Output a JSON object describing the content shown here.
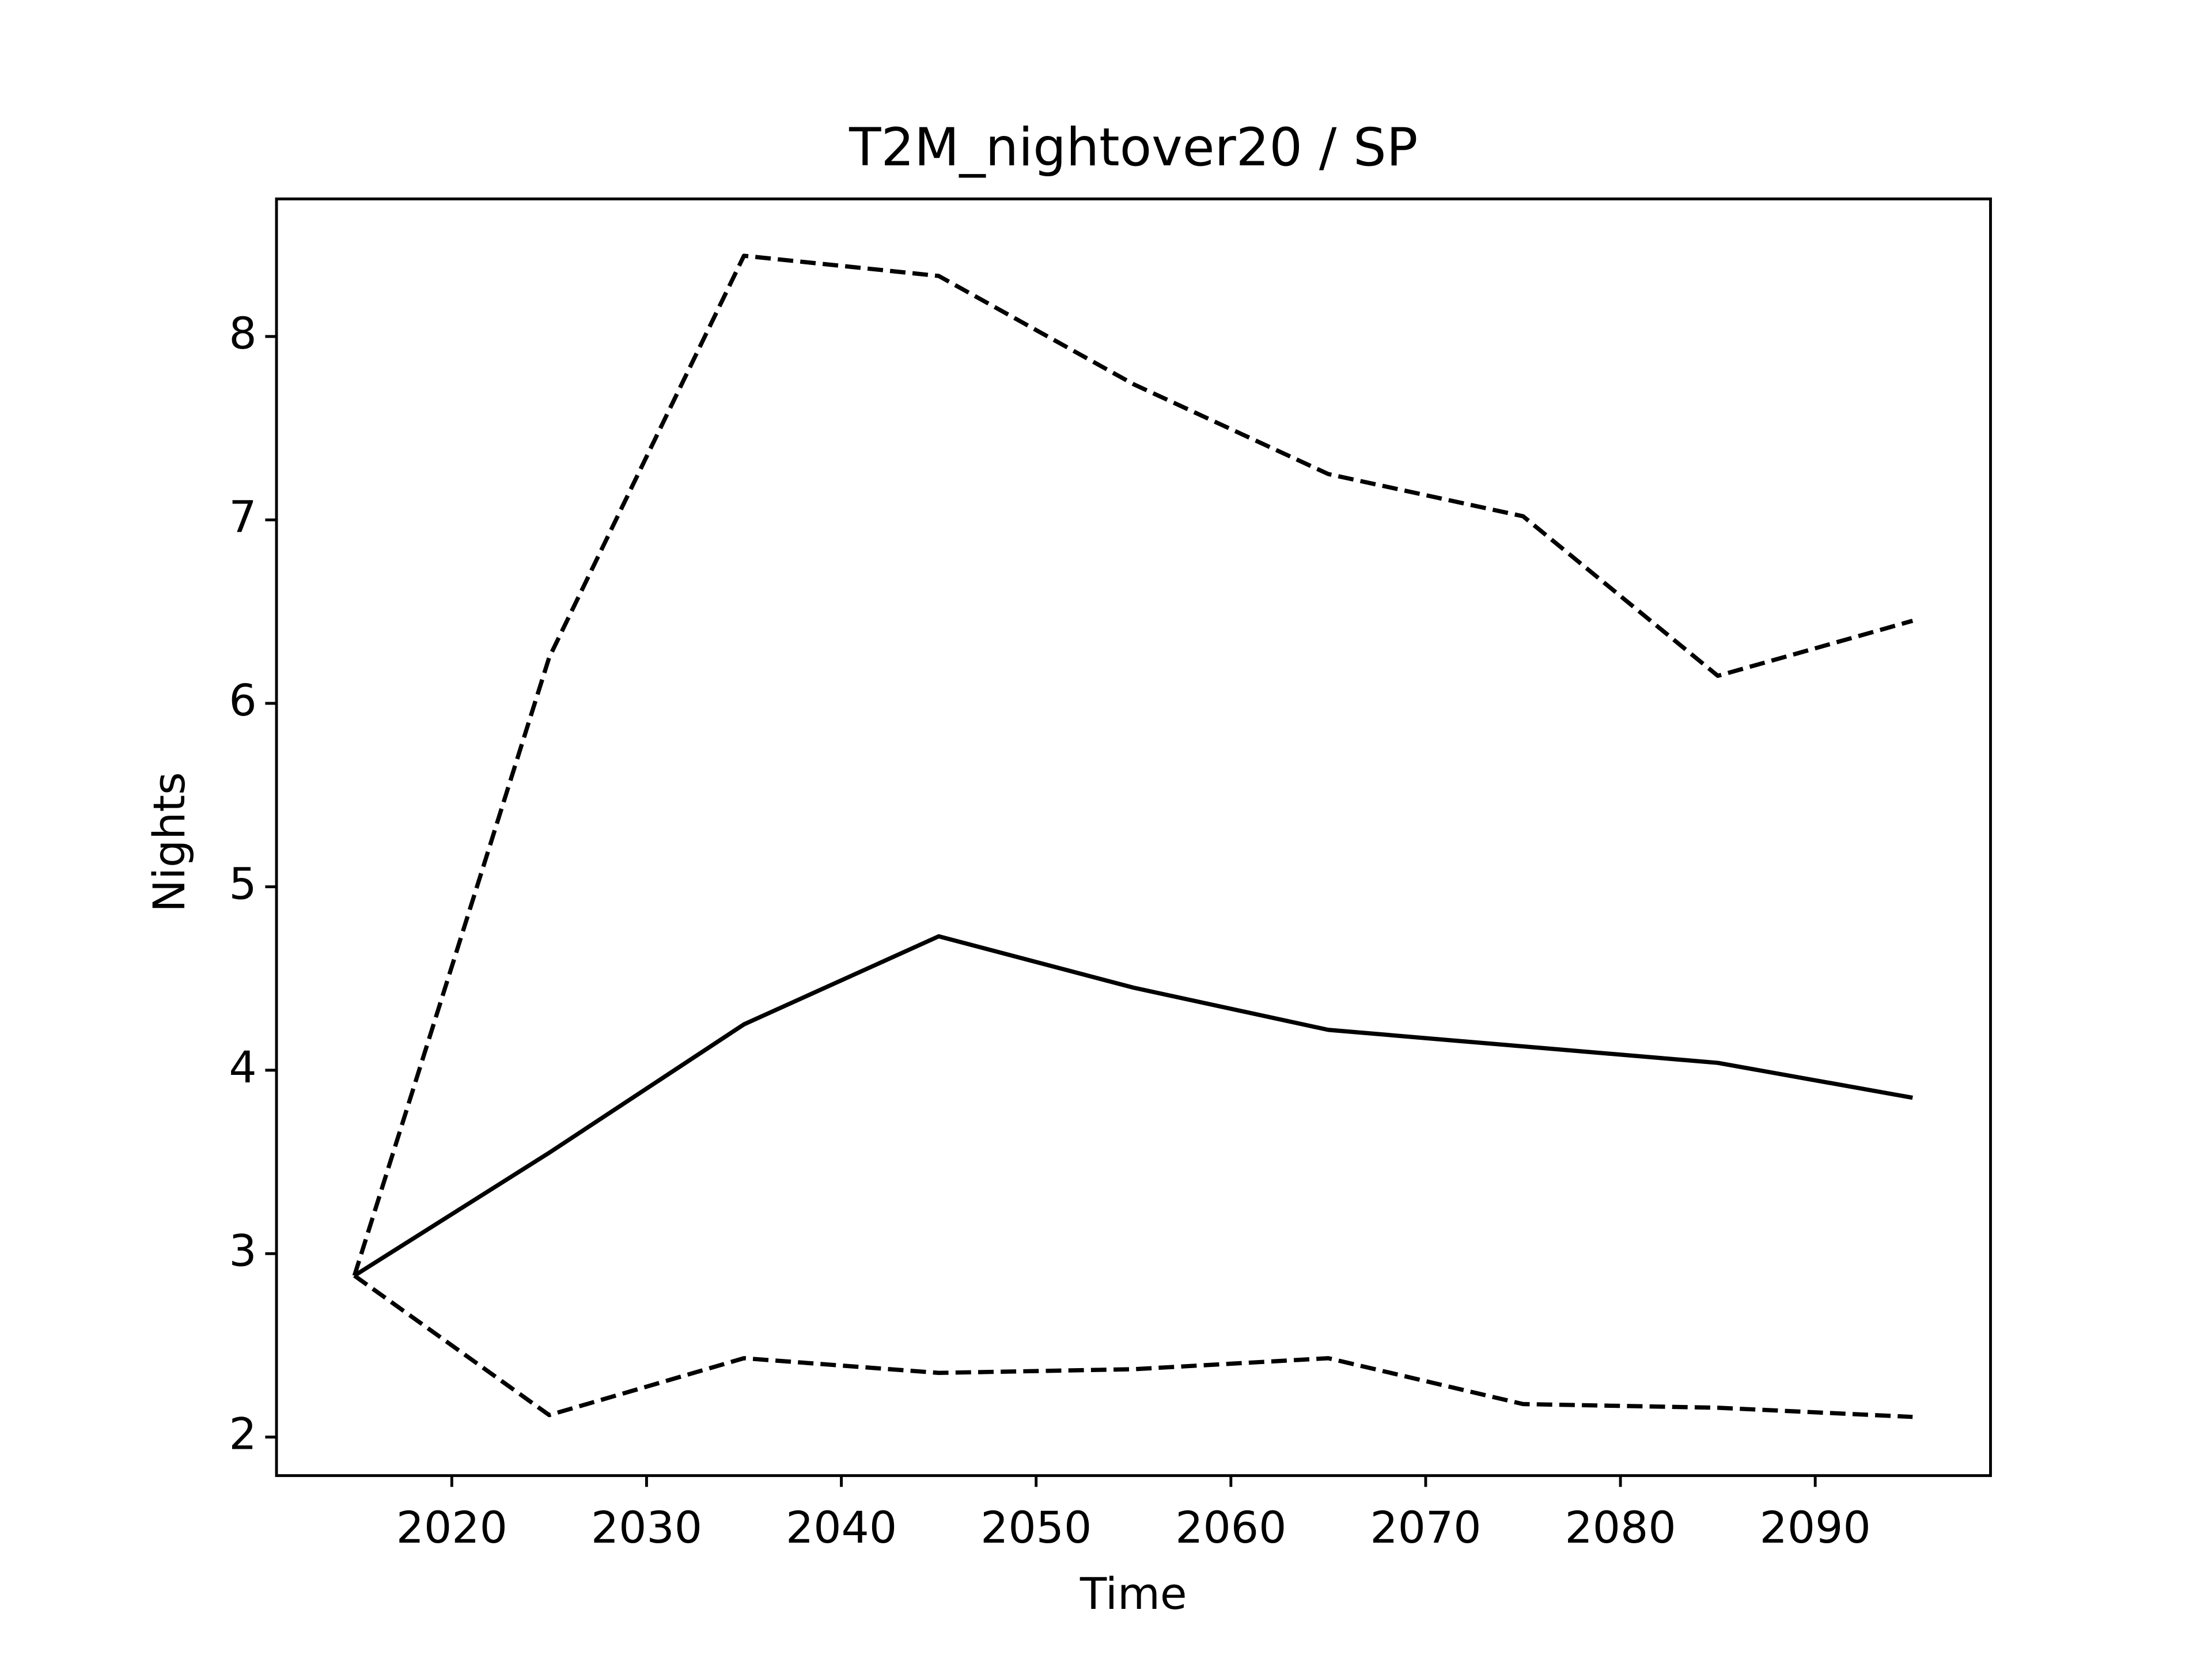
{
  "chart_data": {
    "type": "line",
    "title": "T2M_nightover20 / SP",
    "x_label": "Time",
    "y_label": "Nights",
    "x": [
      2015,
      2025,
      2035,
      2045,
      2055,
      2065,
      2075,
      2085,
      2095
    ],
    "series": [
      {
        "color": "#000000",
        "linestyle": "solid",
        "values": [
          2.88,
          3.55,
          4.25,
          4.73,
          4.45,
          4.22,
          4.13,
          4.04,
          3.85
        ]
      },
      {
        "color": "#000000",
        "linestyle": "dashed",
        "values": [
          2.88,
          6.25,
          8.44,
          8.33,
          7.74,
          7.25,
          7.02,
          6.15,
          6.45
        ]
      },
      {
        "color": "#000000",
        "linestyle": "dashed",
        "values": [
          2.88,
          2.12,
          2.43,
          2.35,
          2.37,
          2.43,
          2.18,
          2.16,
          2.11
        ]
      }
    ],
    "xlim": [
      2011,
      2099
    ],
    "xticks": [
      2020,
      2030,
      2040,
      2050,
      2060,
      2070,
      2080,
      2090
    ],
    "ylim": [
      1.79,
      8.75
    ],
    "yticks": [
      2,
      3,
      4,
      5,
      6,
      7,
      8
    ],
    "grid": false
  }
}
